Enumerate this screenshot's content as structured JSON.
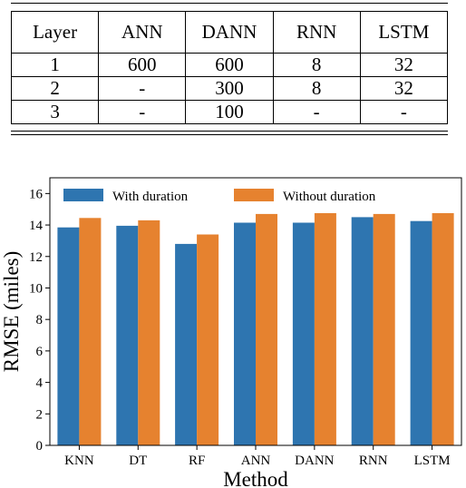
{
  "table": {
    "headers": [
      "Layer",
      "ANN",
      "DANN",
      "RNN",
      "LSTM"
    ],
    "rows": [
      [
        "1",
        "600",
        "600",
        "8",
        "32"
      ],
      [
        "2",
        "-",
        "300",
        "8",
        "32"
      ],
      [
        "3",
        "-",
        "100",
        "-",
        "-"
      ]
    ]
  },
  "chart_data": {
    "type": "bar",
    "title": "",
    "xlabel": "Method",
    "ylabel": "RMSE (miles)",
    "categories": [
      "KNN",
      "DT",
      "RF",
      "ANN",
      "DANN",
      "RNN",
      "LSTM"
    ],
    "ylim": [
      0,
      17
    ],
    "yticks": [
      0,
      2,
      4,
      6,
      8,
      10,
      12,
      14,
      16
    ],
    "grid": false,
    "legend": "top-left",
    "series": [
      {
        "name": "With duration",
        "color": "#2e75b0",
        "values": [
          13.85,
          13.95,
          12.8,
          14.15,
          14.15,
          14.5,
          14.25
        ]
      },
      {
        "name": "Without duration",
        "color": "#e6822f",
        "values": [
          14.45,
          14.3,
          13.4,
          14.7,
          14.75,
          14.7,
          14.75
        ]
      }
    ]
  }
}
